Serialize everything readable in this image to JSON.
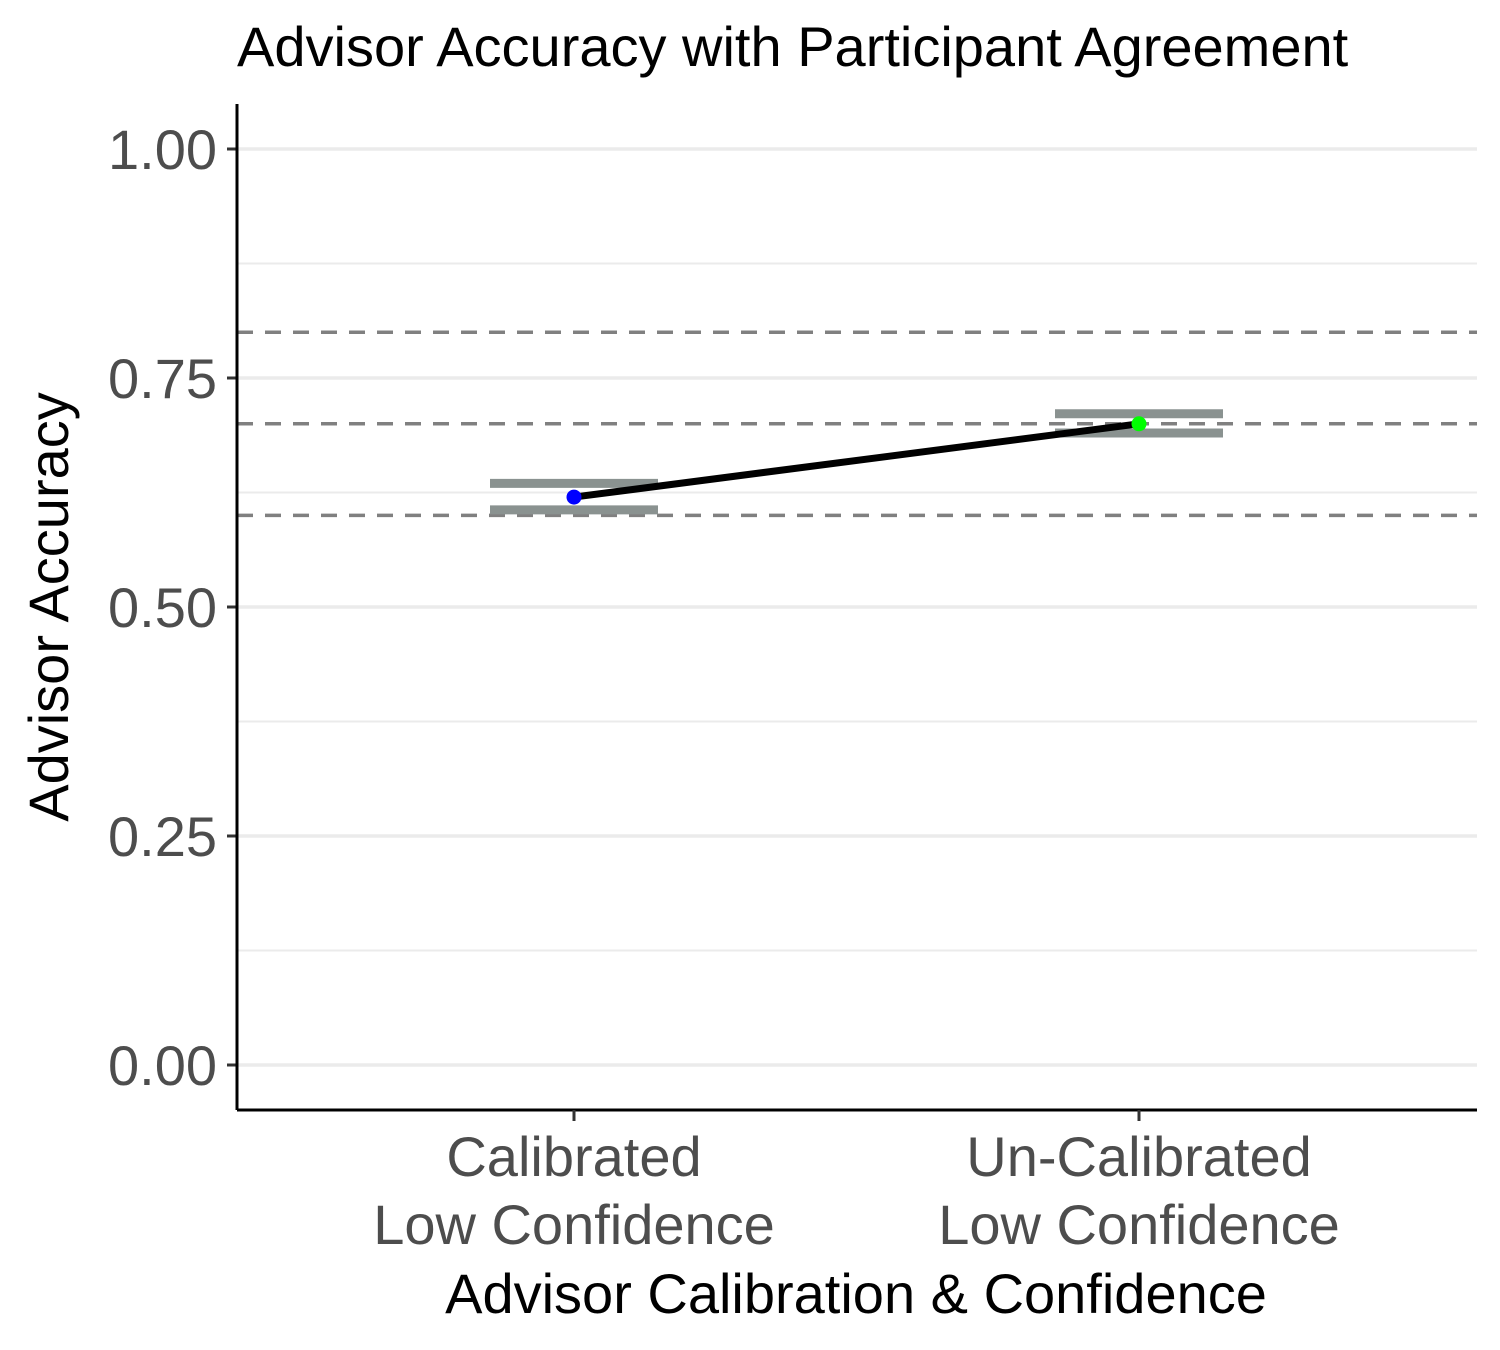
{
  "chart_data": {
    "type": "line",
    "title": "Advisor Accuracy with Participant Agreement",
    "xlabel": "Advisor Calibration & Confidence",
    "ylabel": "Advisor Accuracy",
    "categories": [
      [
        "Calibrated",
        "Low Confidence"
      ],
      [
        "Un-Calibrated",
        "Low Confidence"
      ]
    ],
    "ylim": [
      -0.05,
      1.05
    ],
    "yticks": [
      0.0,
      0.25,
      0.5,
      0.75,
      1.0
    ],
    "ytick_labels": [
      "0.00",
      "0.25",
      "0.50",
      "0.75",
      "1.00"
    ],
    "grid": "horizontal major and minor",
    "reference_lines": [
      0.6,
      0.7,
      0.8
    ],
    "series": [
      {
        "values": [
          0.62,
          0.7
        ],
        "line_color": "#000000",
        "point_colors": [
          "#0000ff",
          "#00ff00"
        ],
        "error_bars": [
          {
            "lower": 0.606,
            "upper": 0.635
          },
          {
            "lower": 0.69,
            "upper": 0.711
          }
        ]
      }
    ],
    "colors": {
      "grid": "#ebebeb",
      "reference_line": "#808080",
      "error_bar": "#8a9290",
      "axis": "#000000"
    }
  }
}
